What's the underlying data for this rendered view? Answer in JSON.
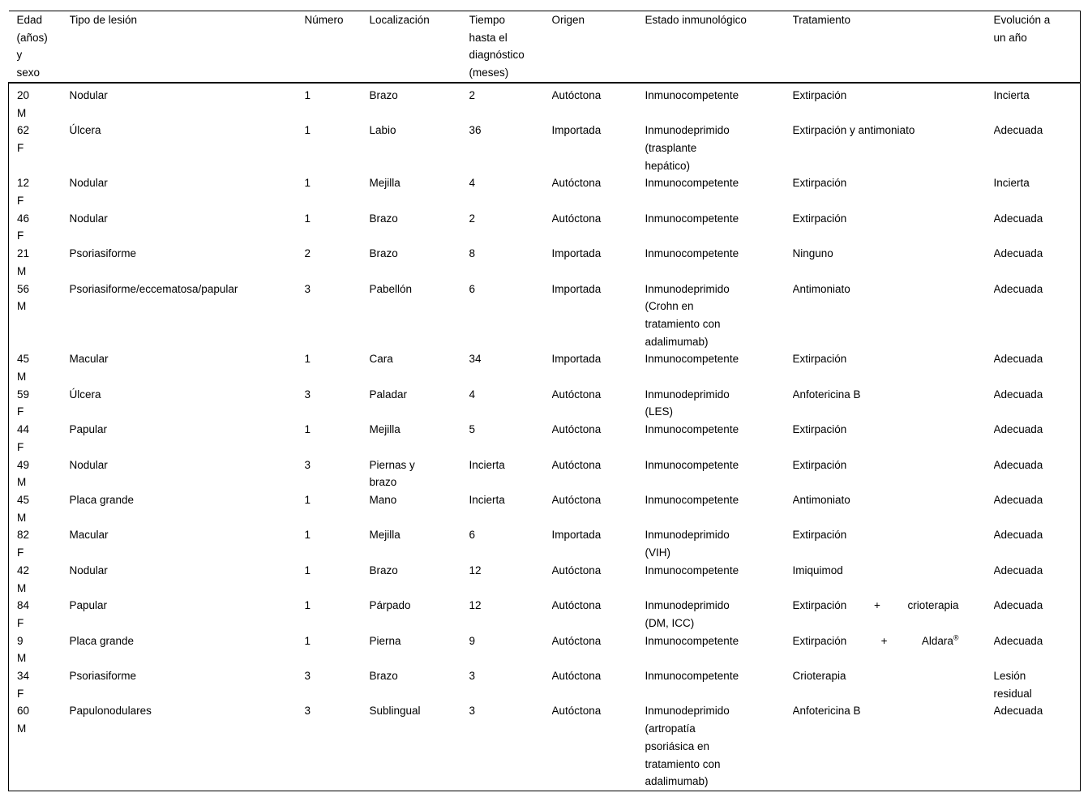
{
  "table": {
    "columns": [
      {
        "key": "edad",
        "label": "Edad\n(años)\ny\nsexo"
      },
      {
        "key": "tipo",
        "label": "Tipo de lesión"
      },
      {
        "key": "numero",
        "label": "Número"
      },
      {
        "key": "localizacion",
        "label": "Localización"
      },
      {
        "key": "tiempo",
        "label": "Tiempo\nhasta el\ndiagnóstico\n(meses)"
      },
      {
        "key": "origen",
        "label": "Origen"
      },
      {
        "key": "estado",
        "label": "Estado inmunológico"
      },
      {
        "key": "tratamiento",
        "label": "Tratamiento"
      },
      {
        "key": "evolucion",
        "label": "Evolución a\nun año"
      }
    ],
    "rows": [
      {
        "edad": "20",
        "sexo": "M",
        "tipo": "Nodular",
        "numero": "1",
        "localizacion": "Brazo",
        "tiempo": "2",
        "origen": "Autóctona",
        "estado": "Inmunocompetente",
        "tratamiento": "Extirpación",
        "evolucion": "Incierta"
      },
      {
        "edad": "62",
        "sexo": "F",
        "tipo": "Úlcera",
        "numero": "1",
        "localizacion": "Labio",
        "tiempo": "36",
        "origen": "Importada",
        "estado": "Inmunodeprimido\n(trasplante\nhepático)",
        "tratamiento": "Extirpación y antimoniato",
        "evolucion": "Adecuada"
      },
      {
        "edad": "12",
        "sexo": "F",
        "tipo": "Nodular",
        "numero": "1",
        "localizacion": "Mejilla",
        "tiempo": "4",
        "origen": "Autóctona",
        "estado": "Inmunocompetente",
        "tratamiento": "Extirpación",
        "evolucion": "Incierta"
      },
      {
        "edad": "46",
        "sexo": "F",
        "tipo": "Nodular",
        "numero": "1",
        "localizacion": "Brazo",
        "tiempo": "2",
        "origen": "Autóctona",
        "estado": "Inmunocompetente",
        "tratamiento": "Extirpación",
        "evolucion": "Adecuada"
      },
      {
        "edad": "21",
        "sexo": "M",
        "tipo": "Psoriasiforme",
        "numero": "2",
        "localizacion": "Brazo",
        "tiempo": "8",
        "origen": "Importada",
        "estado": "Inmunocompetente",
        "tratamiento": "Ninguno",
        "evolucion": "Adecuada"
      },
      {
        "edad": "56",
        "sexo": "M",
        "tipo": "Psoriasiforme/eccematosa/papular",
        "numero": "3",
        "localizacion": "Pabellón",
        "tiempo": "6",
        "origen": "Importada",
        "estado": "Inmunodeprimido\n(Crohn en\ntratamiento con\nadalimumab)",
        "tratamiento": "Antimoniato",
        "evolucion": "Adecuada"
      },
      {
        "edad": "45",
        "sexo": "M",
        "tipo": "Macular",
        "numero": "1",
        "localizacion": "Cara",
        "tiempo": "34",
        "origen": "Importada",
        "estado": "Inmunocompetente",
        "tratamiento": "Extirpación",
        "evolucion": "Adecuada"
      },
      {
        "edad": "59",
        "sexo": "F",
        "tipo": "Úlcera",
        "numero": "3",
        "localizacion": "Paladar",
        "tiempo": "4",
        "origen": "Autóctona",
        "estado": "Inmunodeprimido\n(LES)",
        "tratamiento": "Anfotericina B",
        "evolucion": "Adecuada"
      },
      {
        "edad": "44",
        "sexo": "F",
        "tipo": "Papular",
        "numero": "1",
        "localizacion": "Mejilla",
        "tiempo": "5",
        "origen": "Autóctona",
        "estado": "Inmunocompetente",
        "tratamiento": "Extirpación",
        "evolucion": "Adecuada"
      },
      {
        "edad": "49",
        "sexo": "M",
        "tipo": "Nodular",
        "numero": "3",
        "localizacion": "Piernas y\nbrazo",
        "tiempo": "Incierta",
        "origen": "Autóctona",
        "estado": "Inmunocompetente",
        "tratamiento": "Extirpación",
        "evolucion": "Adecuada"
      },
      {
        "edad": "45",
        "sexo": "M",
        "tipo": "Placa grande",
        "numero": "1",
        "localizacion": "Mano",
        "tiempo": "Incierta",
        "origen": "Autóctona",
        "estado": "Inmunocompetente",
        "tratamiento": "Antimoniato",
        "evolucion": "Adecuada"
      },
      {
        "edad": "82",
        "sexo": "F",
        "tipo": "Macular",
        "numero": "1",
        "localizacion": "Mejilla",
        "tiempo": "6",
        "origen": "Importada",
        "estado": "Inmunodeprimido\n(VIH)",
        "tratamiento": "Extirpación",
        "evolucion": "Adecuada"
      },
      {
        "edad": "42",
        "sexo": "M",
        "tipo": "Nodular",
        "numero": "1",
        "localizacion": "Brazo",
        "tiempo": "12",
        "origen": "Autóctona",
        "estado": "Inmunocompetente",
        "tratamiento": "Imiquimod",
        "evolucion": "Adecuada"
      },
      {
        "edad": "84",
        "sexo": "F",
        "tipo": "Papular",
        "numero": "1",
        "localizacion": "Párpado",
        "tiempo": "12",
        "origen": "Autóctona",
        "estado": "Inmunodeprimido\n(DM, ICC)",
        "tratamiento": [
          "Extirpación",
          "+",
          "crioterapia"
        ],
        "evolucion": "Adecuada"
      },
      {
        "edad": "9",
        "sexo": "M",
        "tipo": "Placa grande",
        "numero": "1",
        "localizacion": "Pierna",
        "tiempo": "9",
        "origen": "Autóctona",
        "estado": "Inmunocompetente",
        "tratamiento": [
          "Extirpación",
          "+",
          "Aldara®"
        ],
        "evolucion": "Adecuada"
      },
      {
        "edad": "34",
        "sexo": "F",
        "tipo": "Psoriasiforme",
        "numero": "3",
        "localizacion": "Brazo",
        "tiempo": "3",
        "origen": "Autóctona",
        "estado": "Inmunocompetente",
        "tratamiento": "Crioterapia",
        "evolucion": "Lesión\nresidual"
      },
      {
        "edad": "60",
        "sexo": "M",
        "tipo": "Papulonodulares",
        "numero": "3",
        "localizacion": "Sublingual",
        "tiempo": "3",
        "origen": "Autóctona",
        "estado": "Inmunodeprimido\n(artropatía\npsoriásica en\ntratamiento con\nadalimumab)",
        "tratamiento": "Anfotericina B",
        "evolucion": "Adecuada"
      }
    ]
  }
}
